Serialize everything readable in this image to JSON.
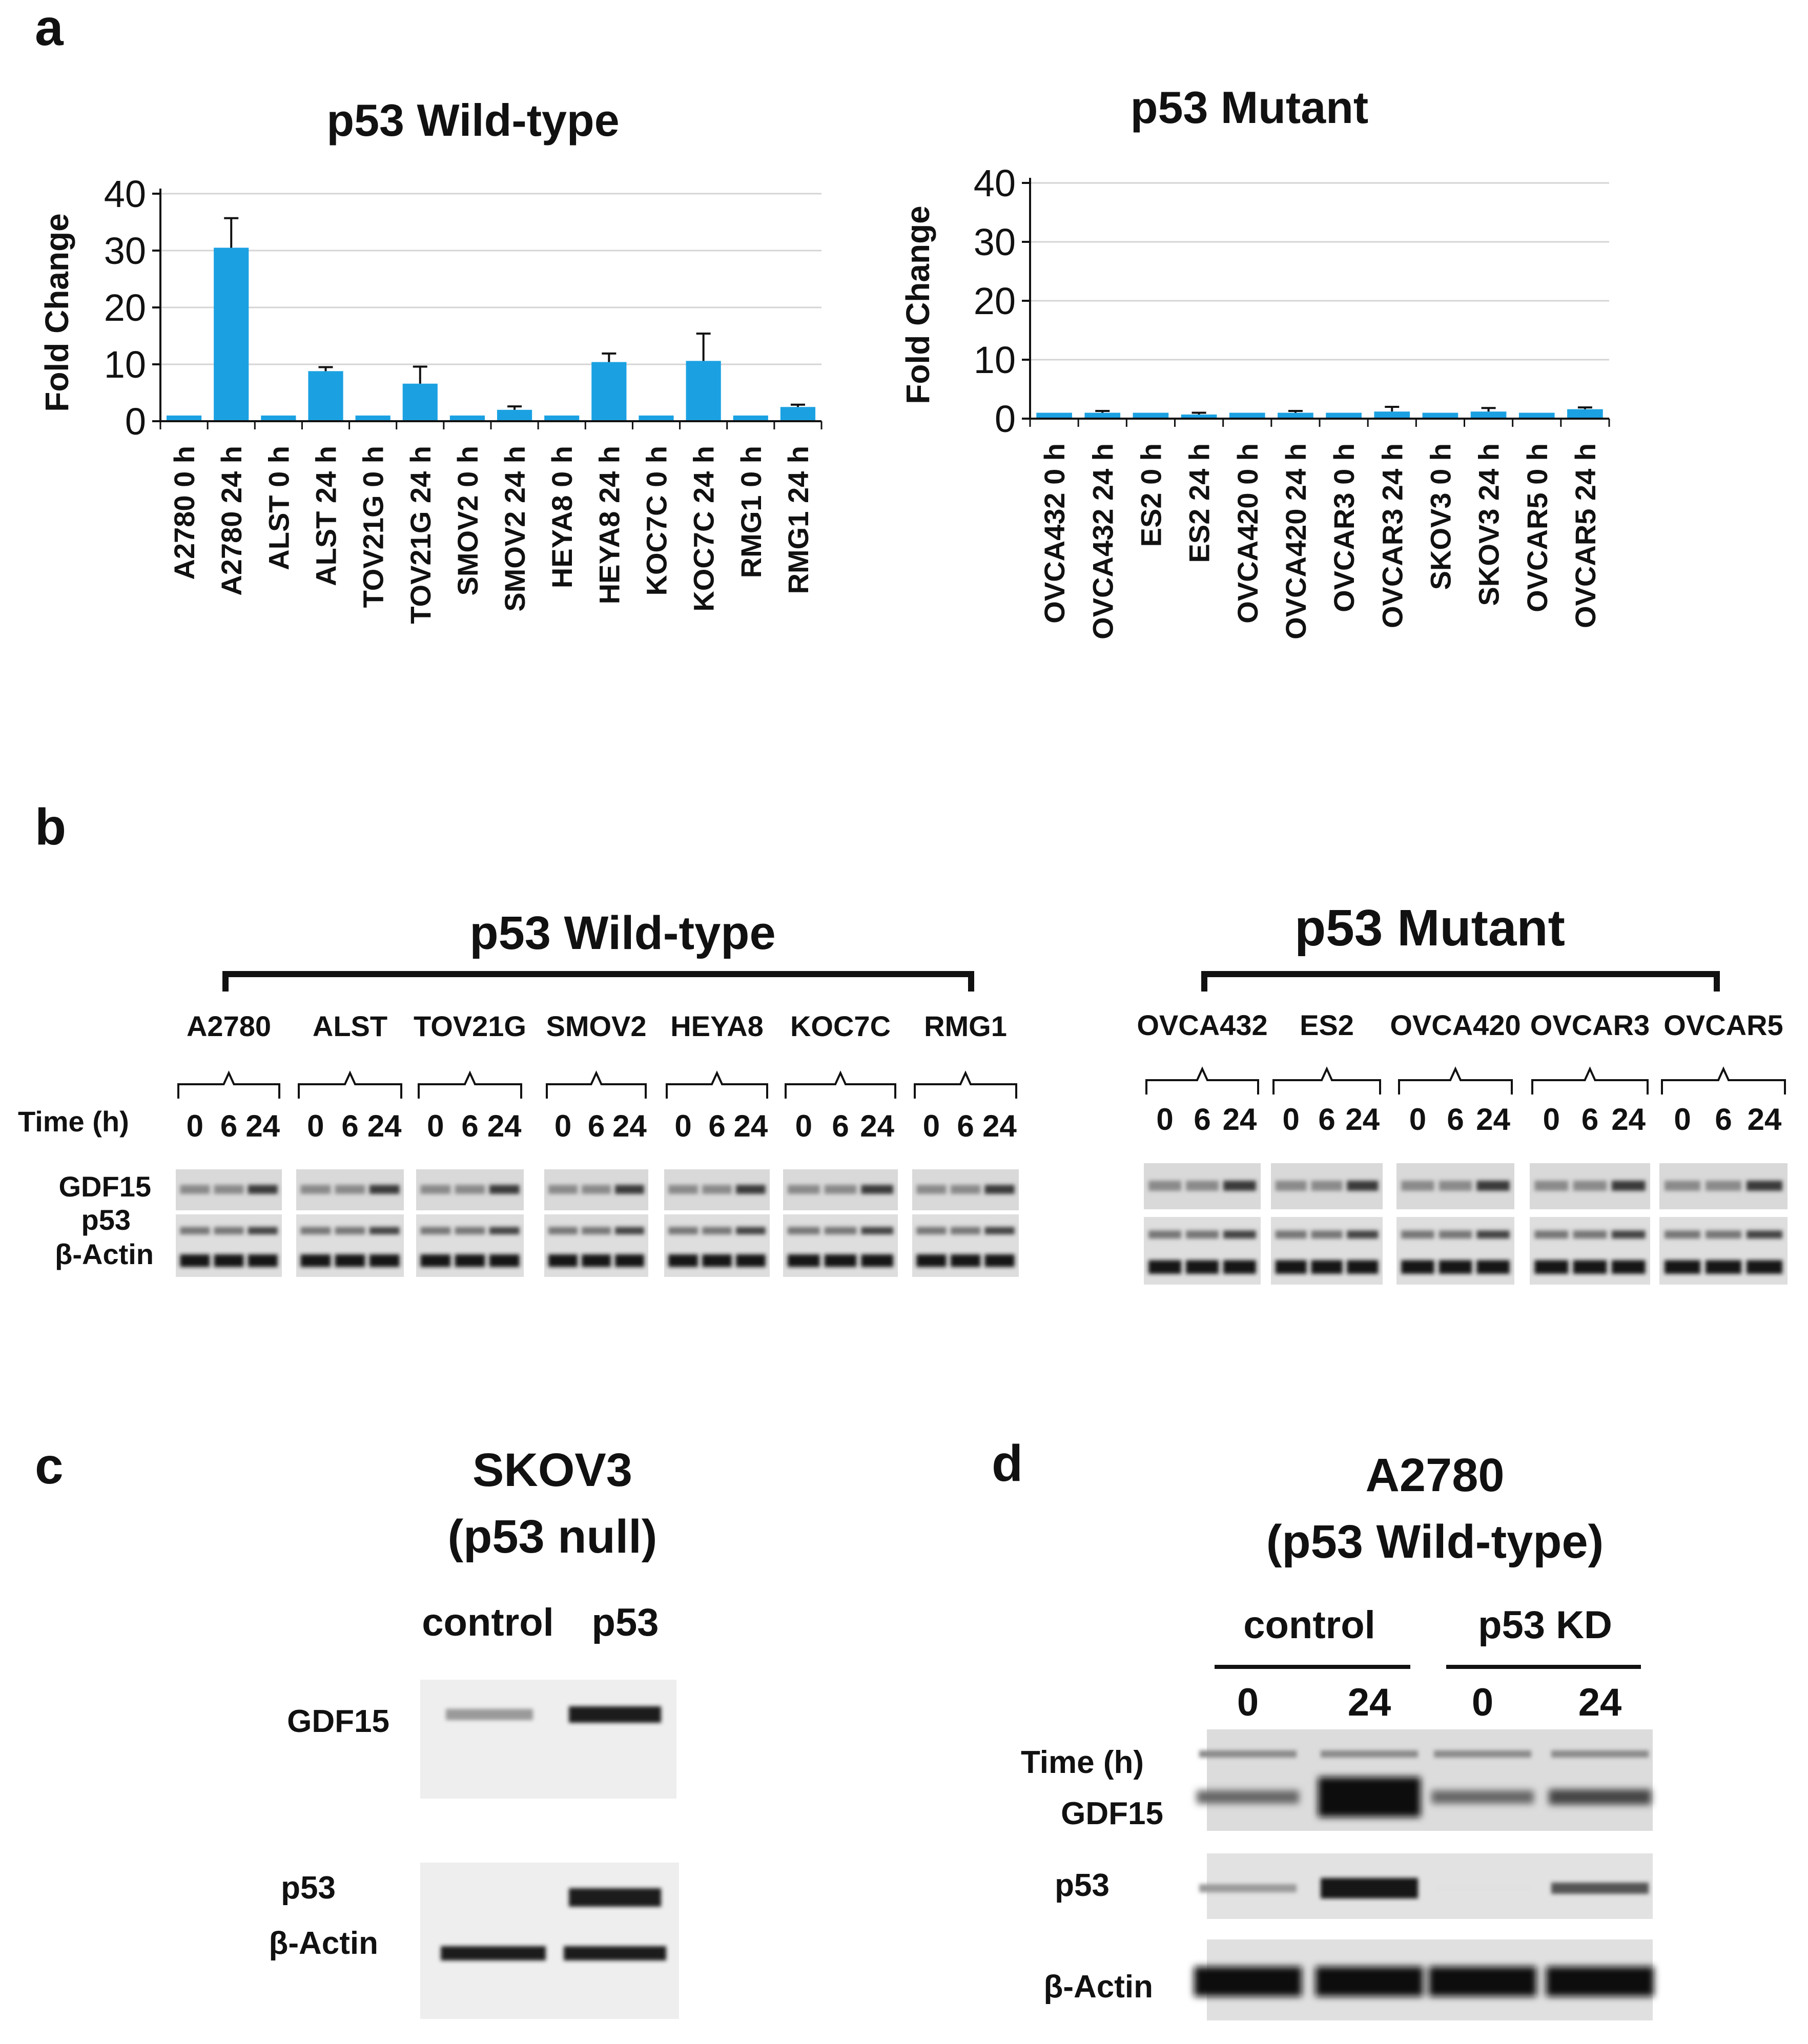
{
  "panel_labels": {
    "a": "a",
    "b": "b",
    "c": "c",
    "d": "d"
  },
  "colors": {
    "bar": "#1BA1E2",
    "text": "#111111",
    "blot_bg": "#d6d6d6",
    "band": "#1a1a1a"
  },
  "chart_data": [
    {
      "type": "bar",
      "title": "p53 Wild-type",
      "ylabel": "Fold Change",
      "xlabel": "",
      "ylim": [
        0,
        40
      ],
      "yticks": [
        "0",
        "10",
        "20",
        "30",
        "40"
      ],
      "grid": true,
      "categories": [
        "A2780 0 h",
        "A2780 24 h",
        "ALST 0 h",
        "ALST 24 h",
        "TOV21G 0 h",
        "TOV21G 24 h",
        "SMOV2 0 h",
        "SMOV2 24 h",
        "HEYA8 0 h",
        "HEYA8 24 h",
        "KOC7C 0 h",
        "KOC7C 24 h",
        "RMG1 0 h",
        "RMG1 24 h"
      ],
      "values": [
        1,
        30.5,
        1,
        8.8,
        1,
        6.6,
        1,
        2.0,
        1,
        10.4,
        1,
        10.6,
        1,
        2.5
      ],
      "errors": [
        0,
        5.2,
        0,
        0.7,
        0,
        3.0,
        0,
        0.6,
        0,
        1.5,
        0,
        4.8,
        0,
        0.4
      ]
    },
    {
      "type": "bar",
      "title": "p53 Mutant",
      "ylabel": "Fold Change",
      "xlabel": "",
      "ylim": [
        0,
        40
      ],
      "yticks": [
        "0",
        "10",
        "20",
        "30",
        "40"
      ],
      "grid": true,
      "categories": [
        "OVCA432 0 h",
        "OVCA432 24 h",
        "ES2 0 h",
        "ES2 24 h",
        "OVCA420 0 h",
        "OVCA420 24 h",
        "OVCAR3 0 h",
        "OVCAR3 24 h",
        "SKOV3 0 h",
        "SKOV3 24 h",
        "OVCAR5 0 h",
        "OVCAR5 24 h"
      ],
      "values": [
        1,
        1.0,
        1,
        0.7,
        1,
        1.0,
        1,
        1.2,
        1,
        1.2,
        1,
        1.6
      ],
      "errors": [
        0,
        0.3,
        0,
        0.3,
        0,
        0.3,
        0,
        0.8,
        0,
        0.6,
        0,
        0.3
      ]
    }
  ],
  "panel_b": {
    "wt_title": "p53 Wild-type",
    "mut_title": "p53 Mutant",
    "time_label": "Time (h)",
    "time_points": [
      "0",
      "6",
      "24"
    ],
    "row_labels": [
      "GDF15",
      "p53",
      "β-Actin"
    ],
    "wt_lines": [
      "A2780",
      "ALST",
      "TOV21G",
      "SMOV2",
      "HEYA8",
      "KOC7C",
      "RMG1"
    ],
    "mut_lines": [
      "OVCA432",
      "ES2",
      "OVCA420",
      "OVCAR3",
      "OVCAR5"
    ]
  },
  "panel_c": {
    "title_line1": "SKOV3",
    "title_line2": "(p53 null)",
    "lanes": [
      "control",
      "p53"
    ],
    "row_labels": [
      "GDF15",
      "p53",
      "β-Actin"
    ]
  },
  "panel_d": {
    "title_line1": "A2780",
    "title_line2": "(p53 Wild-type)",
    "groups": [
      "control",
      "p53 KD"
    ],
    "time_points": [
      "0",
      "24",
      "0",
      "24"
    ],
    "time_label": "Time (h)",
    "row_labels": [
      "GDF15",
      "p53",
      "β-Actin"
    ]
  }
}
